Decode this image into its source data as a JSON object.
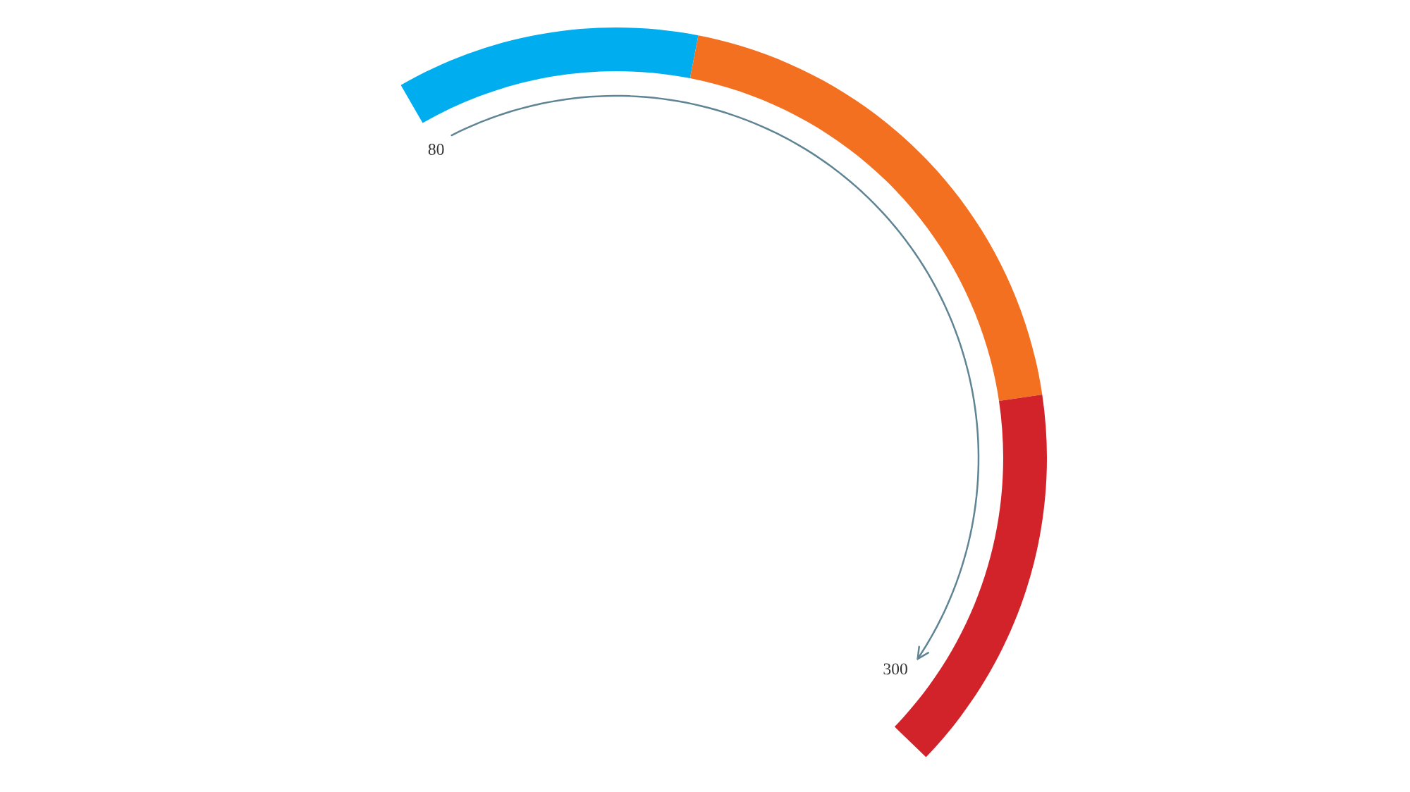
{
  "chart_data": {
    "type": "donut",
    "categories": [
      null,
      null,
      null
    ],
    "values": [
      25,
      43,
      32
    ],
    "colors": [
      "#00aeef",
      "#f37021",
      "#d2232a"
    ],
    "annotations": [
      "80",
      "300"
    ]
  }
}
